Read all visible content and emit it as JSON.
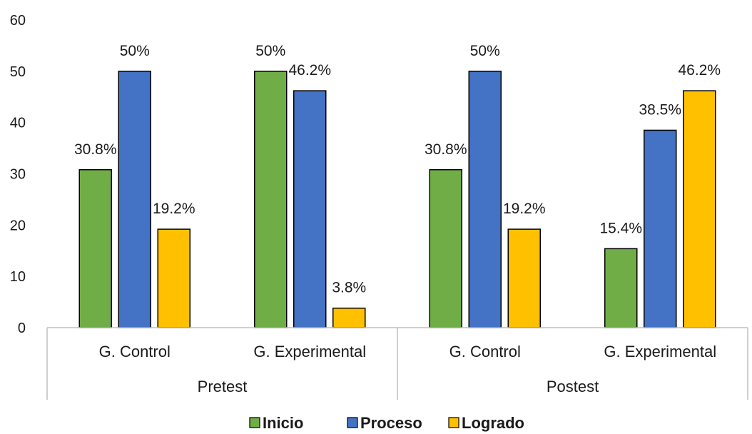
{
  "chart_data": {
    "type": "bar",
    "title": "",
    "xlabel": "",
    "ylabel": "",
    "ylim": [
      0,
      60
    ],
    "yticks": [
      0,
      10,
      20,
      30,
      40,
      50,
      60
    ],
    "grid": false,
    "legend_position": "bottom",
    "groups": [
      {
        "label": "Pretest",
        "categories": [
          "G. Control",
          "G. Experimental"
        ]
      },
      {
        "label": "Postest",
        "categories": [
          "G. Control",
          "G. Experimental"
        ]
      }
    ],
    "series": [
      {
        "name": "Inicio",
        "color": "#70AD47",
        "values": [
          30.8,
          50,
          30.8,
          15.4
        ],
        "labels": [
          "30.8%",
          "50%",
          "30.8%",
          "15.4%"
        ]
      },
      {
        "name": "Proceso",
        "color": "#4472C4",
        "values": [
          50,
          46.2,
          50,
          38.5
        ],
        "labels": [
          "50%",
          "46.2%",
          "50%",
          "38.5%"
        ]
      },
      {
        "name": "Logrado",
        "color": "#FFC000",
        "values": [
          19.2,
          3.8,
          19.2,
          46.2
        ],
        "labels": [
          "19.2%",
          "3.8%",
          "19.2%",
          "46.2%"
        ]
      }
    ]
  }
}
